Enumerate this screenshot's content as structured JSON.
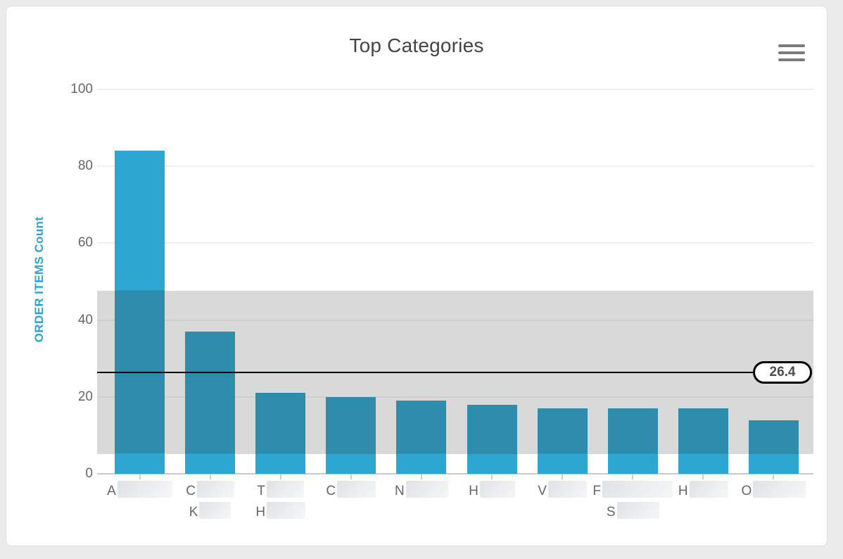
{
  "header": {
    "title": "Top Categories",
    "menu_icon": "hamburger-menu"
  },
  "colors": {
    "bar": "#2ea6d2",
    "bar_in_band": "#2e8dad",
    "band": "#d9d9d9",
    "mean_line": "#000000",
    "axis_text": "#666666",
    "y_axis_title": "#2fa3cd",
    "title_text": "#454545",
    "card_background": "#ffffff",
    "page_background": "#ececec"
  },
  "chart_data": {
    "type": "bar",
    "title": "Top Categories",
    "xlabel": "",
    "ylabel": "ORDER ITEMS Count",
    "ylim": [
      0,
      100
    ],
    "yticks": [
      0,
      20,
      40,
      60,
      80,
      100
    ],
    "grid": true,
    "legend": "none",
    "values": [
      84,
      37,
      21,
      20,
      19,
      18,
      17,
      17,
      17,
      14
    ],
    "categories": [
      {
        "lines": [
          {
            "text": "A",
            "redacted_width": 78
          }
        ]
      },
      {
        "lines": [
          {
            "text": "C",
            "redacted_width": 53
          },
          {
            "text": "K",
            "redacted_width": 45
          }
        ]
      },
      {
        "lines": [
          {
            "text": "T",
            "redacted_width": 53
          },
          {
            "text": "H",
            "redacted_width": 55
          }
        ]
      },
      {
        "lines": [
          {
            "text": "C",
            "redacted_width": 55
          }
        ]
      },
      {
        "lines": [
          {
            "text": "N",
            "redacted_width": 60
          }
        ]
      },
      {
        "lines": [
          {
            "text": "H",
            "redacted_width": 50
          }
        ]
      },
      {
        "lines": [
          {
            "text": "V",
            "redacted_width": 55
          }
        ]
      },
      {
        "lines": [
          {
            "text": "F",
            "redacted_width": 100
          },
          {
            "text": "S",
            "redacted_width": 60
          }
        ]
      },
      {
        "lines": [
          {
            "text": "H",
            "redacted_width": 55
          }
        ]
      },
      {
        "lines": [
          {
            "text": "O",
            "redacted_width": 75
          }
        ]
      }
    ],
    "mean_line": {
      "value": 26.4,
      "label": "26.4"
    },
    "std_band": {
      "from": 5.2,
      "to": 47.6
    }
  }
}
